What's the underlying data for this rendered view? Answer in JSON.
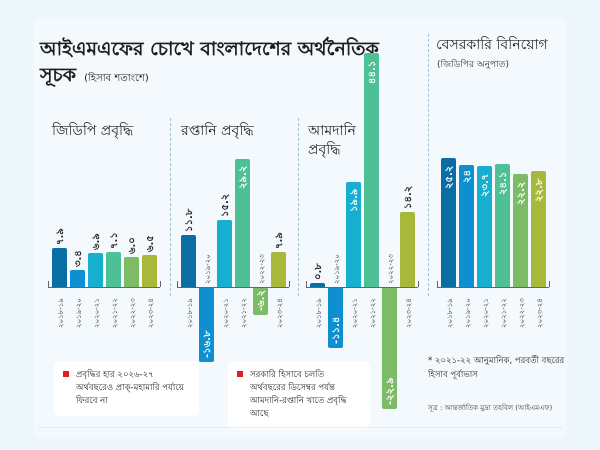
{
  "title": {
    "main": "আইএমএফের চোখে বাংলাদেশের অর্থনৈতিক সূচক",
    "unit": "(হিসাব শতাংশে)"
  },
  "colors": [
    "#0a6ea5",
    "#0d8fd0",
    "#16afcf",
    "#4fbf96",
    "#7cbc66",
    "#a8b83a"
  ],
  "chart_data": [
    {
      "type": "bar",
      "title": "জিডিপি প্রবৃদ্ধি",
      "subtitle": "",
      "categories": [
        "২০১৮-১৯",
        "২০১৯-২০",
        "২০২০-২১",
        "২০২১-২২",
        "২০২২-২৩",
        "২০২৩-২৪"
      ],
      "values": [
        7.9,
        3.4,
        6.9,
        7.1,
        6.0,
        6.5
      ],
      "labels": [
        "৭.৯",
        "৩.৪",
        "৬.৯",
        "৭.১",
        "৬.০",
        "৬.৫"
      ]
    },
    {
      "type": "bar",
      "title": "রপ্তানি প্রবৃদ্ধি",
      "subtitle": "",
      "categories": [
        "২০১৮-১৯",
        "২০১৯-২০",
        "২০২০-২১",
        "২০২১-২২",
        "২০২২-২৩",
        "২০২৩-২৪"
      ],
      "values": [
        11.8,
        -16.8,
        15.2,
        29.2,
        -6.2,
        7.9
      ],
      "labels": [
        "১১.৮",
        "-১৬.৮",
        "১৫.২",
        "২৯.২",
        "-৬.২",
        "৭.৯"
      ]
    },
    {
      "type": "bar",
      "title": "আমদানি প্রবৃদ্ধি",
      "subtitle": "",
      "categories": [
        "২০১৮-১৯",
        "২০১৯-২০",
        "২০২০-২১",
        "২০২১-২২",
        "২০২২-২৩",
        "২০২৩-২৪"
      ],
      "values": [
        0.8,
        -11.4,
        19.9,
        44.1,
        -22.9,
        14.2
      ],
      "labels": [
        "০.৮",
        "-১১.৪",
        "১৯.৯",
        "৪৪.১",
        "-২২.৯",
        "১৪.২"
      ]
    },
    {
      "type": "bar",
      "title": "বেসরকারি বিনিয়োগ",
      "subtitle": "(জিডিপির অনুপাত)",
      "categories": [
        "২০১৮-১৯",
        "২০১৯-২০",
        "২০২০-২১",
        "২০২১-২২",
        "২০২২-২৩",
        "২০২৩-২৪"
      ],
      "values": [
        25.2,
        24.0,
        23.7,
        24.1,
        22.2,
        22.8
      ],
      "labels": [
        "২৫.২",
        "২৪",
        "২৩.৭",
        "২৪.১",
        "২২.২",
        "২২.৮"
      ]
    }
  ],
  "notes": [
    "প্রবৃদ্ধির হার ২০২৬-২৭ অর্থবছরেও প্রাক্-মহামারি পর্যায়ে ফিরবে না",
    "সরকারি হিসাবে চলতি অর্থবছরের ডিসেম্বর পর্যন্ত আমদানি-রপ্তানি খাতে প্রবৃদ্ধি আছে"
  ],
  "footnote": "* ২০২১-২২ আনুমানিক, পরবর্তী বছরের হিসাব পূর্বাভাস",
  "source": "সূত্র : আন্তর্জাতিক মুদ্রা তহবিল (আইএমএফ)"
}
